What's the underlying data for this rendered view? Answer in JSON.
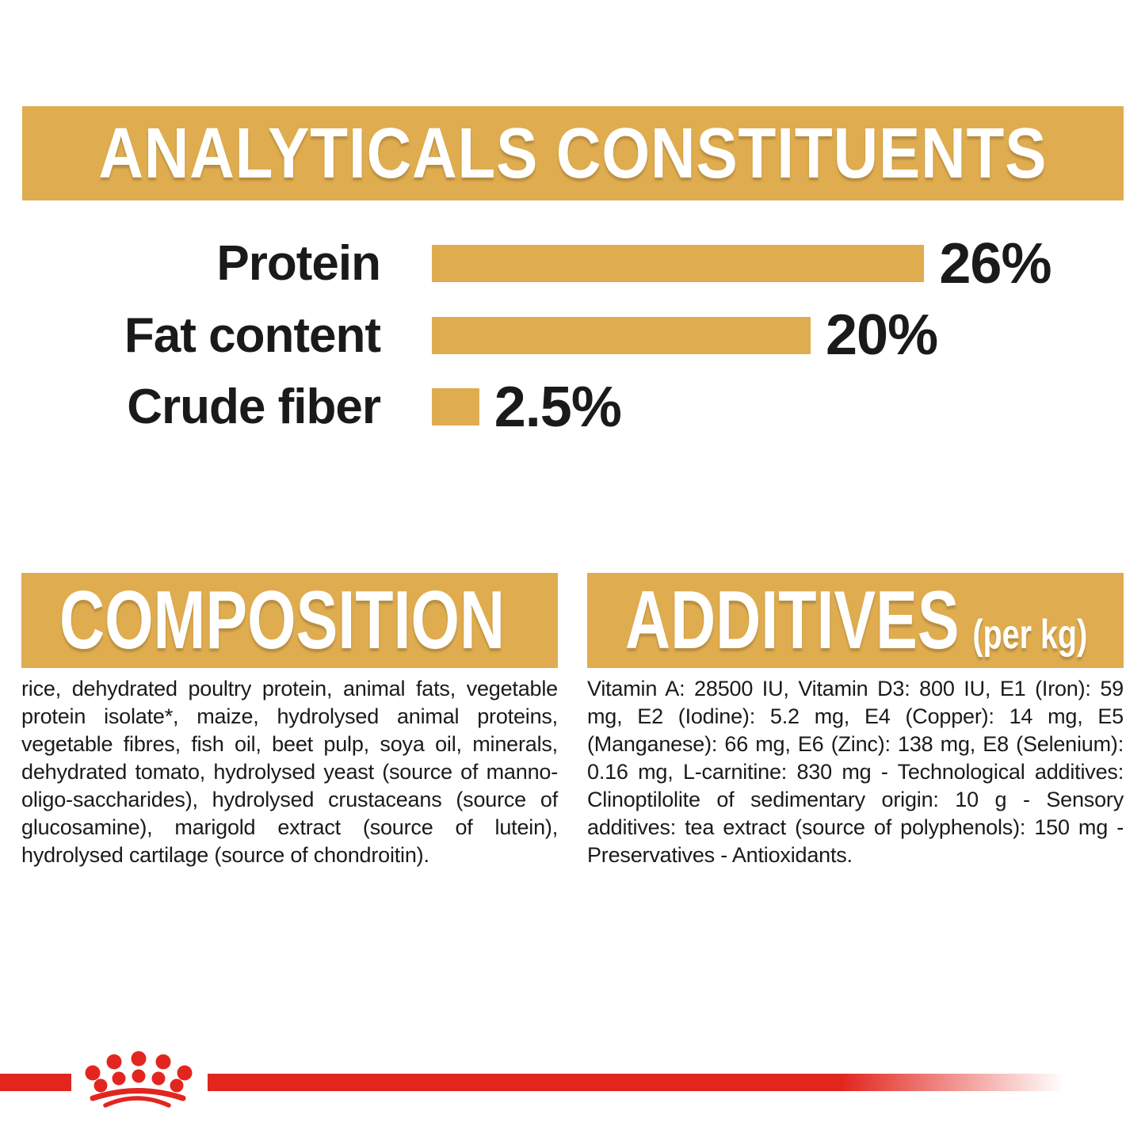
{
  "colors": {
    "gold": "#DFAC4F",
    "red": "#E2261F",
    "text": "#1A1A1A",
    "banner_text": "#FFFFFF",
    "background": "#FFFFFF"
  },
  "analyticals": {
    "title": "ANALYTICALS CONSTITUENTS",
    "rows": [
      {
        "label": "Protein",
        "pct": 26,
        "value_label": "26%"
      },
      {
        "label": "Fat content",
        "pct": 20,
        "value_label": "20%"
      },
      {
        "label": "Crude fiber",
        "pct": 2.5,
        "value_label": "2.5%"
      }
    ]
  },
  "composition": {
    "title": "COMPOSITION",
    "body": "rice, dehydrated poultry protein, animal fats, vegetable protein isolate*, maize, hydrolysed animal proteins, vegetable fibres, fish oil, beet pulp, soya oil, minerals, dehydrated tomato, hydrolysed yeast (source of manno-oligo-saccharides), hydrolysed crustaceans (source of glucosamine), marigold extract (source of lutein), hydrolysed cartilage (source of chondroitin)."
  },
  "additives": {
    "title": "ADDITIVES",
    "unit_suffix": "(per kg)",
    "body": "Vitamin A: 28500 IU, Vitamin D3: 800 IU, E1 (Iron): 59 mg, E2 (Iodine): 5.2 mg, E4 (Copper): 14 mg, E5 (Manganese): 66 mg, E6 (Zinc): 138 mg, E8 (Selenium): 0.16 mg, L-carnitine: 830 mg - Technological additives: Clinoptilolite of sedimentary origin: 10 g - Sensory additives: tea extract (source of polyphenols): 150 mg - Preservatives - Antioxidants."
  },
  "footer": {
    "logo": "royal-canin-crown"
  },
  "chart_data": {
    "type": "bar",
    "orientation": "horizontal",
    "title": "ANALYTICALS CONSTITUENTS",
    "categories": [
      "Protein",
      "Fat content",
      "Crude fiber"
    ],
    "values": [
      26,
      20,
      2.5
    ],
    "value_labels": [
      "26%",
      "20%",
      "2.5%"
    ],
    "unit": "%",
    "bar_color": "#DFAC4F",
    "xlim": [
      0,
      28
    ],
    "grid": false,
    "legend": false
  }
}
